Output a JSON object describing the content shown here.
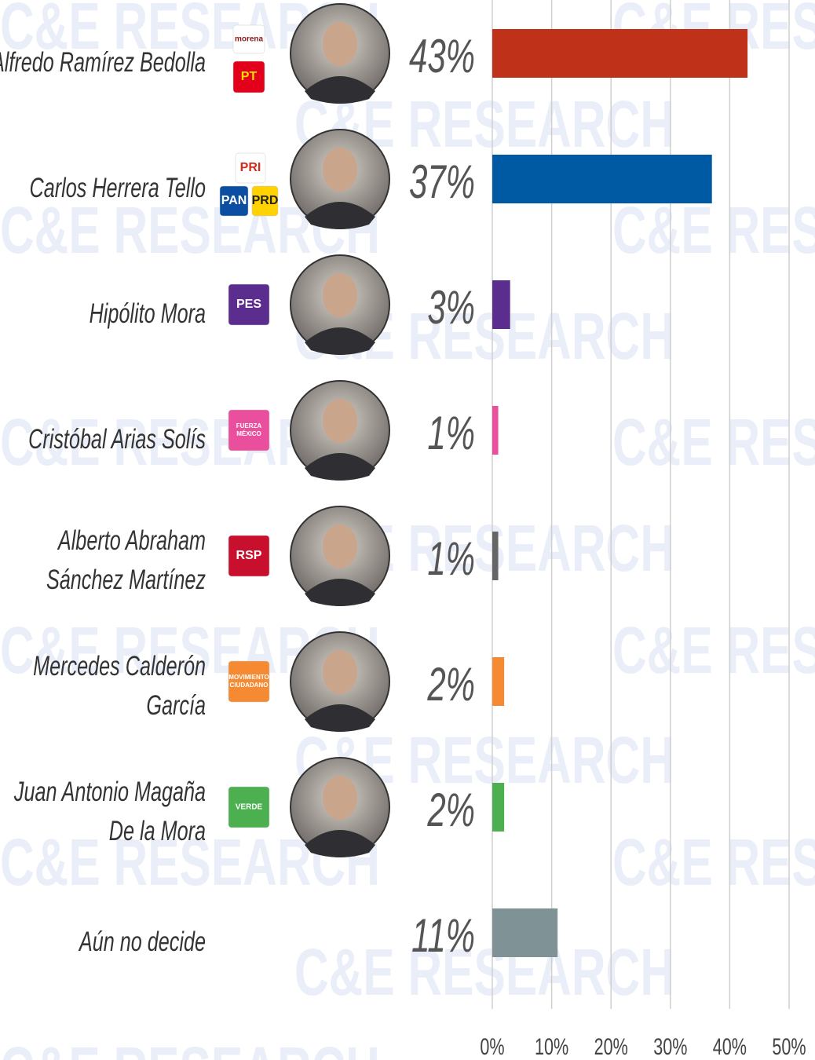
{
  "chart_data": {
    "type": "barh",
    "watermark": "C&E RESEARCH",
    "categories": [
      "Alfredo Ramírez Bedolla",
      "Carlos Herrera Tello",
      "Hipólito Mora",
      "Cristóbal Arias Solís",
      "Alberto Abraham\nSánchez Martínez",
      "Mercedes Calderón\nGarcía",
      "Juan Antonio Magaña\nDe la Mora",
      "Aún no decide"
    ],
    "values": [
      43,
      37,
      3,
      1,
      1,
      2,
      2,
      11
    ],
    "value_labels": [
      "43%",
      "37%",
      "3%",
      "1%",
      "1%",
      "2%",
      "2%",
      "11%"
    ],
    "colors": [
      "#c0311a",
      "#0059a3",
      "#5b2d8e",
      "#e94f9d",
      "#666666",
      "#f58a33",
      "#4caf50",
      "#7f9296"
    ],
    "party_logos": [
      [
        {
          "label": "morena",
          "bg": "#ffffff",
          "fg": "#8b1a1a"
        },
        {
          "label": "PT",
          "bg": "#e2001a",
          "fg": "#ffdd00"
        }
      ],
      [
        {
          "label": "PRI",
          "bg": "#ffffff",
          "fg": "#d52b1e"
        },
        {
          "label": "PAN",
          "bg": "#0b4ea2",
          "fg": "#ffffff"
        },
        {
          "label": "PRD",
          "bg": "#ffd200",
          "fg": "#222222"
        }
      ],
      [
        {
          "label": "PES",
          "bg": "#5b2d8e",
          "fg": "#ffffff"
        }
      ],
      [
        {
          "label": "FUERZA MÉXICO",
          "bg": "#e94f9d",
          "fg": "#ffffff"
        }
      ],
      [
        {
          "label": "RSP",
          "bg": "#c8102e",
          "fg": "#ffffff"
        }
      ],
      [
        {
          "label": "MOVIMIENTO CIUDADANO",
          "bg": "#f58a33",
          "fg": "#ffffff"
        }
      ],
      [
        {
          "label": "VERDE",
          "bg": "#4caf50",
          "fg": "#ffffff"
        }
      ],
      []
    ],
    "xlim": [
      0,
      50
    ],
    "xticks": [
      {
        "value": 0,
        "label": "0%"
      },
      {
        "value": 10,
        "label": "10%"
      },
      {
        "value": 20,
        "label": "20%"
      },
      {
        "value": 30,
        "label": "30%"
      },
      {
        "value": 40,
        "label": "40%"
      },
      {
        "value": 50,
        "label": "50%"
      }
    ],
    "grid": true
  }
}
